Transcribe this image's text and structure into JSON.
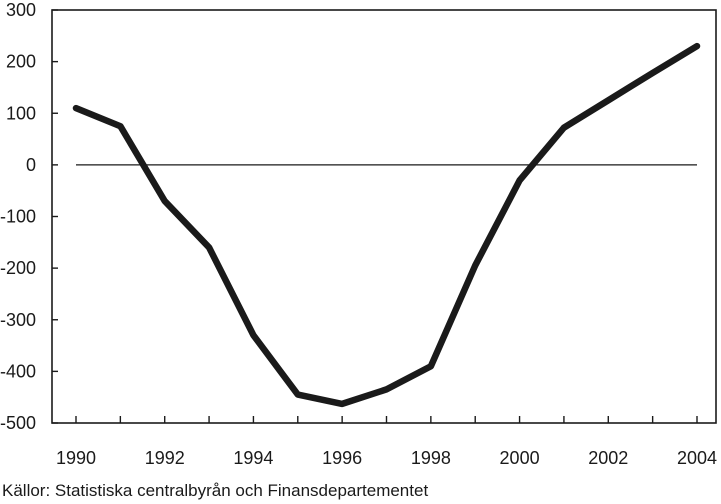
{
  "chart_data": {
    "type": "line",
    "title": "",
    "xlabel": "",
    "ylabel": "",
    "xlim": [
      1990,
      2004
    ],
    "ylim": [
      -500,
      300
    ],
    "grid": false,
    "x_ticks": [
      1990,
      1992,
      1994,
      1996,
      1998,
      2000,
      2002,
      2004
    ],
    "y_ticks": [
      300,
      200,
      100,
      0,
      -100,
      -200,
      -300,
      -400,
      -500
    ],
    "reference_line": 0,
    "series": [
      {
        "color": "#1a1a1a",
        "points": [
          {
            "x": 1990,
            "y": 110
          },
          {
            "x": 1991,
            "y": 75
          },
          {
            "x": 1992,
            "y": -70
          },
          {
            "x": 1993,
            "y": -160
          },
          {
            "x": 1994,
            "y": -330
          },
          {
            "x": 1995,
            "y": -445
          },
          {
            "x": 1996,
            "y": -463
          },
          {
            "x": 1997,
            "y": -435
          },
          {
            "x": 1998,
            "y": -390
          },
          {
            "x": 1999,
            "y": -195
          },
          {
            "x": 2000,
            "y": -30
          },
          {
            "x": 2001,
            "y": 72
          },
          {
            "x": 2002,
            "y": 125
          },
          {
            "x": 2003,
            "y": 178
          },
          {
            "x": 2004,
            "y": 230
          }
        ]
      }
    ],
    "source_note": "Källor: Statistiska centralbyrån och Finansdepartementet"
  }
}
